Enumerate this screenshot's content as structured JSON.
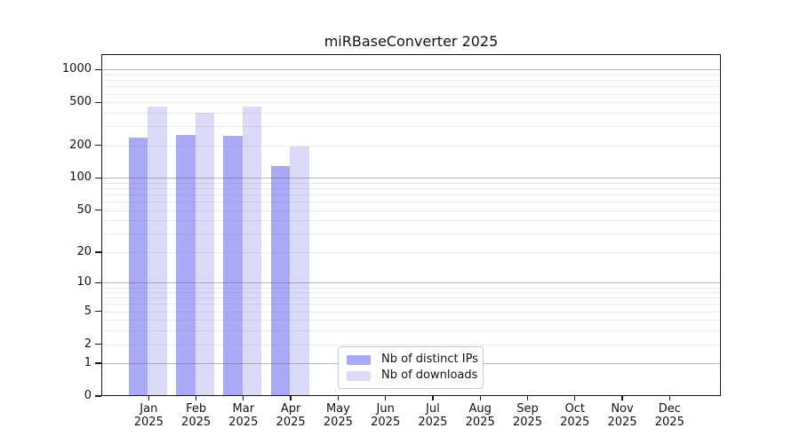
{
  "chart_data": {
    "type": "bar",
    "title": "miRBaseConverter 2025",
    "categories": [
      "Jan",
      "Feb",
      "Mar",
      "Apr",
      "May",
      "Jun",
      "Jul",
      "Aug",
      "Sep",
      "Oct",
      "Nov",
      "Dec"
    ],
    "x_tick_second_line": "2025",
    "series": [
      {
        "name": "Nb of distinct IPs",
        "color": "#a9a9f7",
        "values": [
          235,
          250,
          245,
          129,
          0,
          0,
          0,
          0,
          0,
          0,
          0,
          0
        ]
      },
      {
        "name": "Nb of downloads",
        "color": "#dadaf8",
        "values": [
          460,
          400,
          455,
          195,
          0,
          0,
          0,
          0,
          0,
          0,
          0,
          0
        ]
      }
    ],
    "y_axis": {
      "scale": "symlog",
      "ticks": [
        0,
        1,
        2,
        5,
        10,
        20,
        50,
        100,
        200,
        500,
        1000
      ],
      "major_gridlines": [
        1,
        10,
        100,
        1000
      ],
      "axis_top_value": 1385,
      "min": 0
    },
    "legend": {
      "position": "lower-center",
      "entries": [
        "Nb of distinct IPs",
        "Nb of downloads"
      ]
    },
    "grid": true
  },
  "colors": {
    "background": "#ffffff",
    "spine": "#1a1a1a",
    "text": "#141414",
    "bar_distinct_ips": "#a9a9f7",
    "bar_downloads": "#dadaf8"
  }
}
